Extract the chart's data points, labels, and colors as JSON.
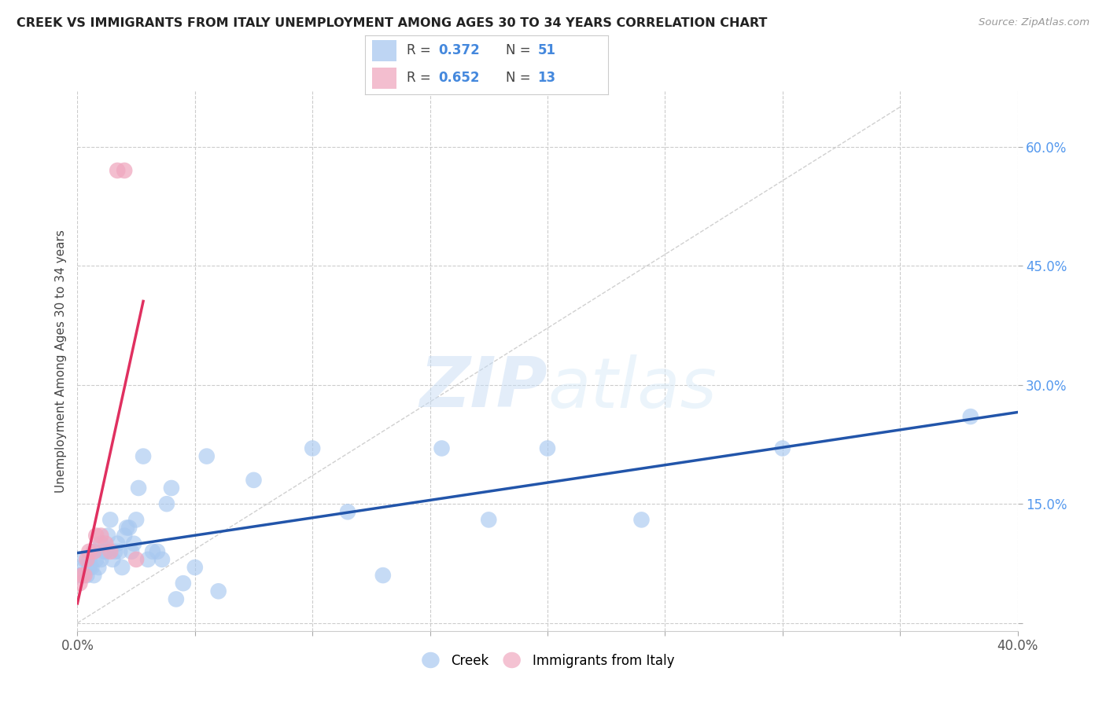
{
  "title": "CREEK VS IMMIGRANTS FROM ITALY UNEMPLOYMENT AMONG AGES 30 TO 34 YEARS CORRELATION CHART",
  "source": "Source: ZipAtlas.com",
  "ylabel": "Unemployment Among Ages 30 to 34 years",
  "xlim": [
    0,
    0.4
  ],
  "ylim": [
    -0.01,
    0.67
  ],
  "xticks": [
    0.0,
    0.05,
    0.1,
    0.15,
    0.2,
    0.25,
    0.3,
    0.35,
    0.4
  ],
  "xticklabels": [
    "0.0%",
    "",
    "",
    "",
    "",
    "",
    "",
    "",
    "40.0%"
  ],
  "yticks": [
    0.0,
    0.15,
    0.3,
    0.45,
    0.6
  ],
  "yticklabels_right": [
    "",
    "15.0%",
    "30.0%",
    "45.0%",
    "60.0%"
  ],
  "creek_color": "#A8C8F0",
  "italy_color": "#F0A8C0",
  "creek_line_color": "#2255AA",
  "italy_line_color": "#E03060",
  "ref_line_color": "#D0D0D0",
  "watermark_zip": "ZIP",
  "watermark_atlas": "atlas",
  "background_color": "#FFFFFF",
  "creek_x": [
    0.001,
    0.002,
    0.003,
    0.004,
    0.005,
    0.005,
    0.006,
    0.007,
    0.007,
    0.008,
    0.009,
    0.01,
    0.01,
    0.011,
    0.012,
    0.013,
    0.014,
    0.015,
    0.016,
    0.017,
    0.018,
    0.019,
    0.02,
    0.021,
    0.022,
    0.023,
    0.024,
    0.025,
    0.026,
    0.028,
    0.03,
    0.032,
    0.034,
    0.036,
    0.038,
    0.04,
    0.042,
    0.045,
    0.05,
    0.055,
    0.06,
    0.075,
    0.1,
    0.115,
    0.13,
    0.155,
    0.175,
    0.2,
    0.24,
    0.3,
    0.38
  ],
  "creek_y": [
    0.06,
    0.07,
    0.08,
    0.06,
    0.07,
    0.08,
    0.07,
    0.06,
    0.09,
    0.08,
    0.07,
    0.1,
    0.08,
    0.09,
    0.09,
    0.11,
    0.13,
    0.08,
    0.09,
    0.1,
    0.09,
    0.07,
    0.11,
    0.12,
    0.12,
    0.09,
    0.1,
    0.13,
    0.17,
    0.21,
    0.08,
    0.09,
    0.09,
    0.08,
    0.15,
    0.17,
    0.03,
    0.05,
    0.07,
    0.21,
    0.04,
    0.18,
    0.22,
    0.14,
    0.06,
    0.22,
    0.13,
    0.22,
    0.13,
    0.22,
    0.26
  ],
  "italy_x": [
    0.001,
    0.002,
    0.003,
    0.004,
    0.005,
    0.007,
    0.008,
    0.01,
    0.012,
    0.014,
    0.017,
    0.02,
    0.025
  ],
  "italy_y": [
    0.05,
    0.06,
    0.06,
    0.08,
    0.09,
    0.09,
    0.11,
    0.11,
    0.1,
    0.09,
    0.57,
    0.57,
    0.08
  ],
  "creek_R": 0.372,
  "creek_N": 51,
  "italy_R": 0.652,
  "italy_N": 13
}
